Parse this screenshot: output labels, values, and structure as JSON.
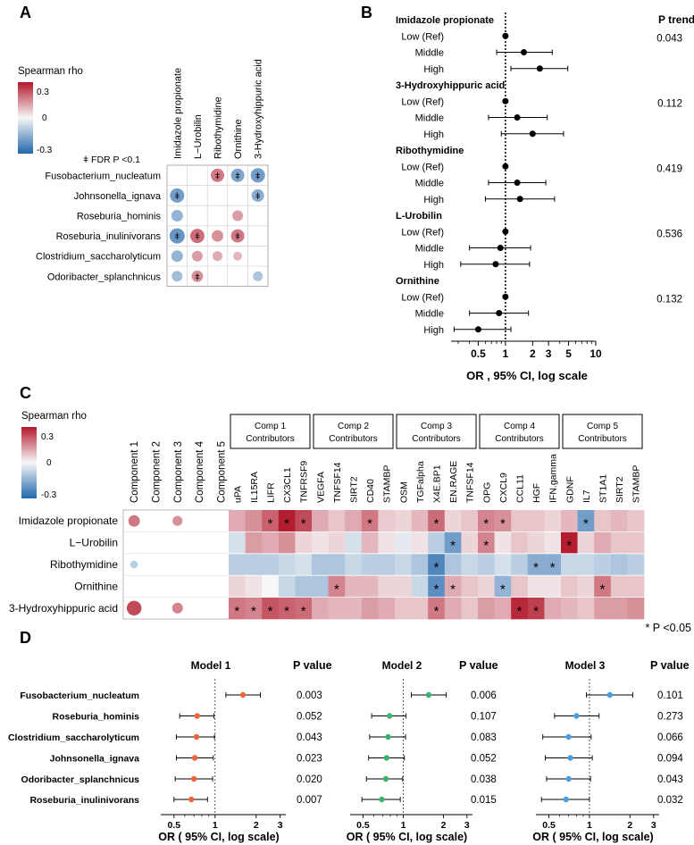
{
  "panels": {
    "A": "A",
    "B": "B",
    "C": "C",
    "D": "D"
  },
  "colors": {
    "pos": "#b2182b",
    "neg": "#2166ac",
    "mid": "#f7f7f7",
    "orange": "#f0643c",
    "green": "#3cb371",
    "blue": "#4a9fe0"
  },
  "panelA": {
    "legend_title": "Spearman rho",
    "legend_ticks": [
      "0.3",
      "0",
      "-0.3"
    ],
    "fdr_note": "ǂ  FDR P <0.1",
    "fdr_symbol": "ǂ",
    "metabolites": [
      "Imidazole propionate",
      "L−Urobilin",
      "Ribothymidine",
      "Ornithine",
      "3-Hydroxyhippuric acid"
    ],
    "taxa": [
      "Fusobacterium_nucleatum",
      "Johnsonella_ignava",
      "Roseburia_hominis",
      "Roseburia_inulinivorans",
      "Clostridium_saccharolyticum",
      "Odoribacter_splanchnicus"
    ],
    "rho": [
      [
        0.0,
        0.0,
        0.18,
        -0.18,
        -0.2
      ],
      [
        -0.2,
        0.0,
        0.0,
        0.0,
        -0.16
      ],
      [
        -0.14,
        0.0,
        0.0,
        0.12,
        0.0
      ],
      [
        -0.22,
        0.2,
        0.14,
        0.18,
        0.0
      ],
      [
        -0.14,
        0.12,
        0.1,
        0.08,
        0.0
      ],
      [
        -0.12,
        0.14,
        0.0,
        0.0,
        -0.1
      ]
    ],
    "fdr": [
      [
        0,
        0,
        1,
        1,
        1
      ],
      [
        1,
        0,
        0,
        0,
        1
      ],
      [
        0,
        0,
        0,
        0,
        0
      ],
      [
        1,
        1,
        0,
        1,
        0
      ],
      [
        0,
        0,
        0,
        0,
        0
      ],
      [
        0,
        1,
        0,
        0,
        0
      ]
    ]
  },
  "panelB": {
    "chart_data": {
      "type": "forest",
      "p_trend_header": "P trend",
      "xlabel": "OR , 95% CI, log scale",
      "xticks": [
        "0.5",
        "1",
        "2",
        "3",
        "5",
        "10"
      ],
      "xlim": [
        0.25,
        10
      ],
      "groups": [
        {
          "name": "Imidazole propionate",
          "p_trend": "0.043",
          "rows": [
            {
              "label": "Low (Ref)",
              "or": 1.0,
              "lo": 1.0,
              "hi": 1.0
            },
            {
              "label": "Middle",
              "or": 1.6,
              "lo": 0.8,
              "hi": 3.3
            },
            {
              "label": "High",
              "or": 2.4,
              "lo": 1.15,
              "hi": 4.9
            }
          ]
        },
        {
          "name": "3-Hydroxyhippuric acid",
          "p_trend": "0.112",
          "rows": [
            {
              "label": "Low (Ref)",
              "or": 1.0,
              "lo": 1.0,
              "hi": 1.0
            },
            {
              "label": "Middle",
              "or": 1.35,
              "lo": 0.65,
              "hi": 2.9
            },
            {
              "label": "High",
              "or": 2.0,
              "lo": 0.9,
              "hi": 4.4
            }
          ]
        },
        {
          "name": "Ribothymidine",
          "p_trend": "0.419",
          "rows": [
            {
              "label": "Low (Ref)",
              "or": 1.0,
              "lo": 1.0,
              "hi": 1.0
            },
            {
              "label": "Middle",
              "or": 1.35,
              "lo": 0.65,
              "hi": 2.8
            },
            {
              "label": "High",
              "or": 1.45,
              "lo": 0.6,
              "hi": 3.5
            }
          ]
        },
        {
          "name": "L-Urobilin",
          "p_trend": "0.536",
          "rows": [
            {
              "label": "Low (Ref)",
              "or": 1.0,
              "lo": 1.0,
              "hi": 1.0
            },
            {
              "label": "Middle",
              "or": 0.88,
              "lo": 0.4,
              "hi": 1.9
            },
            {
              "label": "High",
              "or": 0.78,
              "lo": 0.32,
              "hi": 1.85
            }
          ]
        },
        {
          "name": "Ornithine",
          "p_trend": "0.132",
          "rows": [
            {
              "label": "Low (Ref)",
              "or": 1.0,
              "lo": 1.0,
              "hi": 1.0
            },
            {
              "label": "Middle",
              "or": 0.85,
              "lo": 0.4,
              "hi": 1.8
            },
            {
              "label": "High",
              "or": 0.5,
              "lo": 0.27,
              "hi": 1.15
            }
          ]
        }
      ]
    }
  },
  "panelC": {
    "legend_title": "Spearman rho",
    "legend_ticks": [
      "0.3",
      "0",
      "-0.3"
    ],
    "components": [
      "Component 1",
      "Component 2",
      "Component 3",
      "Component 4",
      "Component 5"
    ],
    "component_rho": [
      [
        0.18,
        0,
        0.14,
        0,
        0
      ],
      [
        0,
        0,
        0,
        0,
        0
      ],
      [
        -0.08,
        0,
        0,
        0,
        0
      ],
      [
        0,
        0,
        0,
        0,
        0
      ],
      [
        0.26,
        0,
        0.16,
        0,
        0
      ]
    ],
    "groups": [
      {
        "title": "Comp 1",
        "subtitle": "Contributors",
        "count": 5
      },
      {
        "title": "Comp 2",
        "subtitle": "Contributors",
        "count": 5
      },
      {
        "title": "Comp 3",
        "subtitle": "Contributors",
        "count": 5
      },
      {
        "title": "Comp 4",
        "subtitle": "Contributors",
        "count": 5
      },
      {
        "title": "Comp 5",
        "subtitle": "Contributors",
        "count": 5
      }
    ],
    "proteins": [
      "uPA",
      "IL15RA",
      "LIFR",
      "CX3CL1",
      "TNFRSF9",
      "VEGFA",
      "TNFSF14",
      "SIRT2",
      "CD40",
      "STAMBP",
      "OSM",
      "TGFalpha",
      "X4E.BP1",
      "EN.RAGE",
      "TNFSF14",
      "OPG",
      "CXCL9",
      "CCL11",
      "HGF",
      "IFN.gamma",
      "GDNF",
      "IL7",
      "ST1A1",
      "SIRT2",
      "STAMBP"
    ],
    "metabolites": [
      "Imidazole propionate",
      "L−Urobilin",
      "Ribothymidine",
      "Ornithine",
      "3-Hydroxyhippuric acid"
    ],
    "rho": [
      [
        0.1,
        0.14,
        0.22,
        0.34,
        0.26,
        0.1,
        0.06,
        0.1,
        0.18,
        0.05,
        0.04,
        0.08,
        0.2,
        0.04,
        0.06,
        0.16,
        0.14,
        0.06,
        0.06,
        0.04,
        0.08,
        -0.2,
        0.06,
        0.08,
        0.06
      ],
      [
        -0.04,
        0.12,
        0.1,
        0.14,
        0.04,
        0.02,
        0.04,
        -0.04,
        0.08,
        0.02,
        -0.02,
        0.02,
        -0.08,
        -0.2,
        0.04,
        0.16,
        0.02,
        0.06,
        0.04,
        0.02,
        0.34,
        0.04,
        0.1,
        0.06,
        0.06
      ],
      [
        -0.08,
        -0.08,
        -0.08,
        -0.06,
        -0.04,
        -0.1,
        -0.1,
        -0.06,
        -0.08,
        -0.08,
        -0.06,
        -0.1,
        -0.26,
        -0.1,
        -0.06,
        -0.08,
        -0.04,
        -0.08,
        -0.16,
        -0.16,
        -0.06,
        -0.06,
        -0.08,
        -0.1,
        -0.08
      ],
      [
        0.04,
        0.02,
        0.0,
        -0.06,
        -0.1,
        -0.1,
        0.16,
        0.08,
        0.08,
        0.04,
        0.04,
        -0.06,
        -0.24,
        0.1,
        0.06,
        0.04,
        -0.14,
        0.06,
        0.02,
        0.02,
        0.06,
        0.04,
        0.18,
        0.06,
        0.06
      ],
      [
        0.18,
        0.16,
        0.24,
        0.22,
        0.2,
        0.1,
        0.08,
        0.08,
        0.12,
        0.1,
        0.06,
        0.06,
        0.18,
        0.1,
        0.06,
        0.12,
        0.1,
        0.32,
        0.28,
        0.1,
        0.08,
        0.06,
        0.12,
        0.12,
        0.14
      ]
    ],
    "sig": [
      [
        0,
        0,
        1,
        1,
        1,
        0,
        0,
        0,
        1,
        0,
        0,
        0,
        1,
        0,
        0,
        1,
        1,
        0,
        0,
        0,
        0,
        1,
        0,
        0,
        0
      ],
      [
        0,
        0,
        0,
        0,
        0,
        0,
        0,
        0,
        0,
        0,
        0,
        0,
        0,
        1,
        0,
        1,
        0,
        0,
        0,
        0,
        1,
        0,
        0,
        0,
        0
      ],
      [
        0,
        0,
        0,
        0,
        0,
        0,
        0,
        0,
        0,
        0,
        0,
        0,
        1,
        0,
        0,
        0,
        0,
        0,
        1,
        1,
        0,
        0,
        0,
        0,
        0
      ],
      [
        0,
        0,
        0,
        0,
        0,
        0,
        1,
        0,
        0,
        0,
        0,
        0,
        1,
        1,
        0,
        0,
        1,
        0,
        0,
        0,
        0,
        0,
        1,
        0,
        0
      ],
      [
        1,
        1,
        1,
        1,
        1,
        0,
        0,
        0,
        0,
        0,
        0,
        0,
        1,
        0,
        0,
        0,
        0,
        1,
        1,
        0,
        0,
        0,
        0,
        0,
        0
      ]
    ],
    "sig_symbol": "*",
    "p_note": "* P <0.05"
  },
  "panelD": {
    "taxa": [
      "Fusobacterium_nucleatum",
      "Roseburia_hominis",
      "Clostridium_saccharolyticum",
      "Johnsonella_ignava",
      "Odoribacter_splanchnicus",
      "Roseburia_inulinivorans"
    ],
    "pvalue_header": "P value",
    "xlabel": "OR ( 95% CI, log scale)",
    "xticks": [
      "0.5",
      "1",
      "2",
      "3"
    ],
    "xlim": [
      0.4,
      3.3
    ],
    "chart_data": [
      {
        "type": "forest",
        "title": "Model 1",
        "color": "orange",
        "or": [
          1.6,
          0.74,
          0.73,
          0.71,
          0.7,
          0.67
        ],
        "lo": [
          1.2,
          0.55,
          0.52,
          0.52,
          0.51,
          0.5
        ],
        "hi": [
          2.15,
          0.98,
          0.99,
          0.97,
          0.96,
          0.88
        ],
        "p": [
          "0.003",
          "0.052",
          "0.043",
          "0.023",
          "0.020",
          "0.007"
        ]
      },
      {
        "type": "forest",
        "title": "Model 2",
        "color": "green",
        "or": [
          1.55,
          0.79,
          0.77,
          0.75,
          0.74,
          0.69
        ],
        "lo": [
          1.15,
          0.58,
          0.56,
          0.55,
          0.53,
          0.49
        ],
        "hi": [
          2.1,
          1.05,
          1.04,
          1.02,
          0.99,
          0.95
        ],
        "p": [
          "0.006",
          "0.107",
          "0.083",
          "0.052",
          "0.038",
          "0.015"
        ]
      },
      {
        "type": "forest",
        "title": "Model 3",
        "color": "blue",
        "or": [
          1.42,
          0.8,
          0.7,
          0.72,
          0.7,
          0.67
        ],
        "lo": [
          0.95,
          0.55,
          0.45,
          0.47,
          0.48,
          0.44
        ],
        "hi": [
          2.1,
          1.18,
          1.03,
          1.05,
          1.02,
          1.0
        ],
        "p": [
          "0.101",
          "0.273",
          "0.066",
          "0.094",
          "0.043",
          "0.032"
        ]
      }
    ]
  }
}
